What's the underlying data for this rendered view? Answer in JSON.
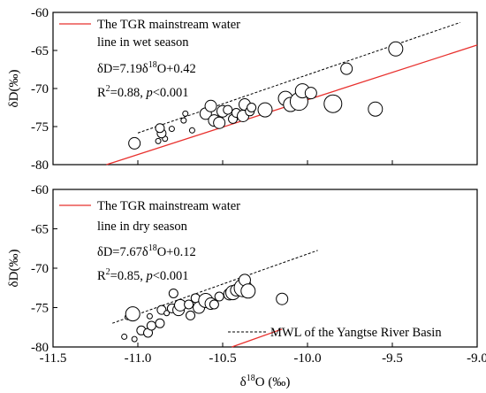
{
  "chart_data": [
    {
      "type": "scatter",
      "panel": "top",
      "xlim": [
        -11.5,
        -9.0
      ],
      "ylim": [
        -80,
        -60
      ],
      "yticks": [
        -60,
        -65,
        -70,
        -75,
        -80
      ],
      "ytick_labels": [
        "-60",
        "-65",
        "-70",
        "-75",
        "-80"
      ],
      "ylabel_prefix": "δD",
      "ylabel_unit": "(‰)",
      "legend_line1": "The TGR mainstream water",
      "legend_line2": "line in wet season",
      "eq_pre": "δD=7.19δ",
      "eq_sup": "18",
      "eq_post": "O+0.42",
      "r2_pre": "R",
      "r2_sup": "2",
      "r2_mid": "=0.88, ",
      "r2_p": "p",
      "r2_post": "<0.001",
      "fit_line": {
        "slope": 7.19,
        "intercept": 0.42,
        "x_range": [
          -11.5,
          -9.0
        ],
        "color": "#e8302d"
      },
      "mwl_line": {
        "slope": 7.64,
        "intercept": 8.2,
        "x_range": [
          -11.0,
          -9.1
        ]
      },
      "points": [
        {
          "x": -11.02,
          "y": -77.2,
          "size": "m"
        },
        {
          "x": -10.88,
          "y": -76.9,
          "size": "xs"
        },
        {
          "x": -10.84,
          "y": -76.6,
          "size": "xs"
        },
        {
          "x": -10.86,
          "y": -75.9,
          "size": "s"
        },
        {
          "x": -10.87,
          "y": -75.2,
          "size": "s"
        },
        {
          "x": -10.8,
          "y": -75.3,
          "size": "xs"
        },
        {
          "x": -10.68,
          "y": -75.5,
          "size": "xs"
        },
        {
          "x": -10.73,
          "y": -74.2,
          "size": "xs"
        },
        {
          "x": -10.72,
          "y": -73.3,
          "size": "xs"
        },
        {
          "x": -10.6,
          "y": -73.3,
          "size": "m"
        },
        {
          "x": -10.57,
          "y": -72.3,
          "size": "m"
        },
        {
          "x": -10.55,
          "y": -74.2,
          "size": "m"
        },
        {
          "x": -10.52,
          "y": -74.5,
          "size": "m"
        },
        {
          "x": -10.5,
          "y": -73.0,
          "size": "m"
        },
        {
          "x": -10.47,
          "y": -72.8,
          "size": "s"
        },
        {
          "x": -10.44,
          "y": -74.0,
          "size": "s"
        },
        {
          "x": -10.42,
          "y": -73.2,
          "size": "s"
        },
        {
          "x": -10.38,
          "y": -73.6,
          "size": "m"
        },
        {
          "x": -10.37,
          "y": -72.1,
          "size": "m"
        },
        {
          "x": -10.34,
          "y": -73.0,
          "size": "s"
        },
        {
          "x": -10.33,
          "y": -72.5,
          "size": "s"
        },
        {
          "x": -10.25,
          "y": -72.8,
          "size": "l"
        },
        {
          "x": -10.13,
          "y": -71.3,
          "size": "l"
        },
        {
          "x": -10.1,
          "y": -72.1,
          "size": "l"
        },
        {
          "x": -10.05,
          "y": -71.7,
          "size": "xl"
        },
        {
          "x": -10.03,
          "y": -70.3,
          "size": "l"
        },
        {
          "x": -9.98,
          "y": -70.6,
          "size": "m"
        },
        {
          "x": -9.85,
          "y": -72.0,
          "size": "xl"
        },
        {
          "x": -9.77,
          "y": -67.4,
          "size": "m"
        },
        {
          "x": -9.6,
          "y": -72.7,
          "size": "l"
        },
        {
          "x": -9.48,
          "y": -64.8,
          "size": "l"
        }
      ]
    },
    {
      "type": "scatter",
      "panel": "bottom",
      "xlim": [
        -11.5,
        -9.0
      ],
      "ylim": [
        -80,
        -60
      ],
      "xticks": [
        -11.5,
        -11.0,
        -10.5,
        -10.0,
        -9.5,
        -9.0
      ],
      "xtick_labels": [
        "-11.5",
        "-11.0",
        "-10.5",
        "-10.0",
        "-9.5",
        "-9.0"
      ],
      "yticks": [
        -60,
        -65,
        -70,
        -75,
        -80
      ],
      "ytick_labels": [
        "-60",
        "-65",
        "-70",
        "-75",
        "-80"
      ],
      "ylabel_prefix": "δD",
      "ylabel_unit": "(‰)",
      "xlabel_pre": "δ",
      "xlabel_sup": "18",
      "xlabel_post": "O (‰)",
      "legend_line1": "The TGR mainstream water",
      "legend_line2": "line in dry season",
      "eq_pre": "δD=7.67δ",
      "eq_sup": "18",
      "eq_post": "O+0.12",
      "r2_pre": "R",
      "r2_sup": "2",
      "r2_mid": "=0.85, ",
      "r2_p": "p",
      "r2_post": "<0.001",
      "mwl_label": "MWL of the Yangtse River Basin",
      "fit_line": {
        "slope": 7.67,
        "intercept": 0.12,
        "x_range": [
          -11.5,
          -10.15
        ],
        "color": "#e8302d"
      },
      "mwl_line": {
        "slope": 7.64,
        "intercept": 8.2,
        "x_range": [
          -11.15,
          -9.94
        ]
      },
      "points": [
        {
          "x": -11.06,
          "y": -76.2,
          "size": "xs"
        },
        {
          "x": -11.03,
          "y": -75.8,
          "size": "l"
        },
        {
          "x": -11.02,
          "y": -79.0,
          "size": "xs"
        },
        {
          "x": -11.08,
          "y": -78.7,
          "size": "xs"
        },
        {
          "x": -10.98,
          "y": -77.9,
          "size": "s"
        },
        {
          "x": -10.94,
          "y": -78.2,
          "size": "s"
        },
        {
          "x": -10.92,
          "y": -77.3,
          "size": "s"
        },
        {
          "x": -10.93,
          "y": -76.1,
          "size": "xs"
        },
        {
          "x": -10.87,
          "y": -77.0,
          "size": "s"
        },
        {
          "x": -10.86,
          "y": -75.3,
          "size": "s"
        },
        {
          "x": -10.83,
          "y": -75.7,
          "size": "xs"
        },
        {
          "x": -10.8,
          "y": -75.1,
          "size": "s"
        },
        {
          "x": -10.79,
          "y": -73.2,
          "size": "s"
        },
        {
          "x": -10.76,
          "y": -75.3,
          "size": "m"
        },
        {
          "x": -10.75,
          "y": -74.7,
          "size": "m"
        },
        {
          "x": -10.7,
          "y": -74.6,
          "size": "s"
        },
        {
          "x": -10.69,
          "y": -76.0,
          "size": "s"
        },
        {
          "x": -10.66,
          "y": -73.8,
          "size": "s"
        },
        {
          "x": -10.64,
          "y": -75.0,
          "size": "m"
        },
        {
          "x": -10.6,
          "y": -74.1,
          "size": "l"
        },
        {
          "x": -10.57,
          "y": -74.5,
          "size": "m"
        },
        {
          "x": -10.55,
          "y": -74.6,
          "size": "s"
        },
        {
          "x": -10.52,
          "y": -73.6,
          "size": "s"
        },
        {
          "x": -10.46,
          "y": -73.3,
          "size": "m"
        },
        {
          "x": -10.44,
          "y": -73.1,
          "size": "l"
        },
        {
          "x": -10.42,
          "y": -72.8,
          "size": "m"
        },
        {
          "x": -10.38,
          "y": -72.5,
          "size": "xl"
        },
        {
          "x": -10.37,
          "y": -71.5,
          "size": "m"
        },
        {
          "x": -10.35,
          "y": -72.9,
          "size": "l"
        },
        {
          "x": -10.15,
          "y": -73.9,
          "size": "m"
        }
      ]
    }
  ]
}
